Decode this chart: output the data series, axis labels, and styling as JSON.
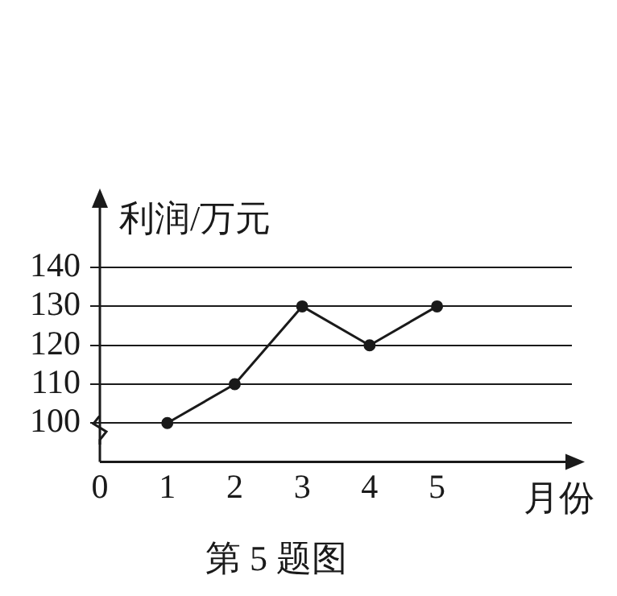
{
  "chart_data": {
    "type": "line",
    "xlabel": "月份",
    "ylabel": "利润/万元",
    "x": [
      1,
      2,
      3,
      4,
      5
    ],
    "series": [
      {
        "color": "#1a1a1a",
        "values": [
          100,
          110,
          130,
          120,
          130
        ]
      }
    ],
    "xlim": [
      0,
      7
    ],
    "xticks": [
      0,
      1,
      2,
      3,
      4,
      5
    ],
    "ylim": [
      90,
      157
    ],
    "yticks": [
      100,
      110,
      120,
      130,
      140
    ],
    "grid": "y",
    "marker": "circle",
    "line_style": "solid",
    "legend": false,
    "annotations": [
      "第 5 题图"
    ]
  }
}
